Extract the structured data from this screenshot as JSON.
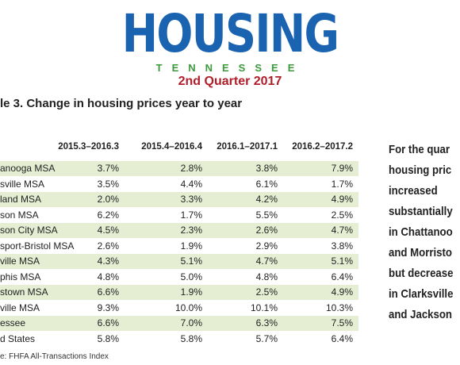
{
  "header": {
    "logo": "HOUSING",
    "state": "TENNESSEE",
    "period": "2nd Quarter 2017"
  },
  "title": "le 3. Change in housing prices year to year",
  "table": {
    "columns": [
      "2015.3–2016.3",
      "2015.4–2016.4",
      "2016.1–2017.1",
      "2016.2–2017.2"
    ],
    "rows": [
      [
        "anooga MSA",
        "3.7%",
        "2.8%",
        "3.8%",
        "7.9%"
      ],
      [
        "sville MSA",
        "3.5%",
        "4.4%",
        "6.1%",
        "1.7%"
      ],
      [
        "land MSA",
        "2.0%",
        "3.3%",
        "4.2%",
        "4.9%"
      ],
      [
        "son MSA",
        "6.2%",
        "1.7%",
        "5.5%",
        "2.5%"
      ],
      [
        "son City MSA",
        "4.5%",
        "2.3%",
        "2.6%",
        "4.7%"
      ],
      [
        "sport-Bristol MSA",
        "2.6%",
        "1.9%",
        "2.9%",
        "3.8%"
      ],
      [
        "ville MSA",
        "4.3%",
        "5.1%",
        "4.7%",
        "5.1%"
      ],
      [
        "phis MSA",
        "4.8%",
        "5.0%",
        "4.8%",
        "6.4%"
      ],
      [
        "stown MSA",
        "6.6%",
        "1.9%",
        "2.5%",
        "4.9%"
      ],
      [
        "ville MSA",
        "9.3%",
        "10.0%",
        "10.1%",
        "10.3%"
      ],
      [
        "essee",
        "6.6%",
        "7.0%",
        "6.3%",
        "7.5%"
      ],
      [
        "d States",
        "5.8%",
        "5.8%",
        "5.7%",
        "6.4%"
      ]
    ]
  },
  "source": "e: FHFA All-Transactions Index",
  "sidebar": [
    "For the quar",
    "housing pric",
    "increased",
    "substantially",
    "in Chattanoo",
    "and Morristo",
    "but decrease",
    "in Clarksville",
    "and Jackson"
  ]
}
